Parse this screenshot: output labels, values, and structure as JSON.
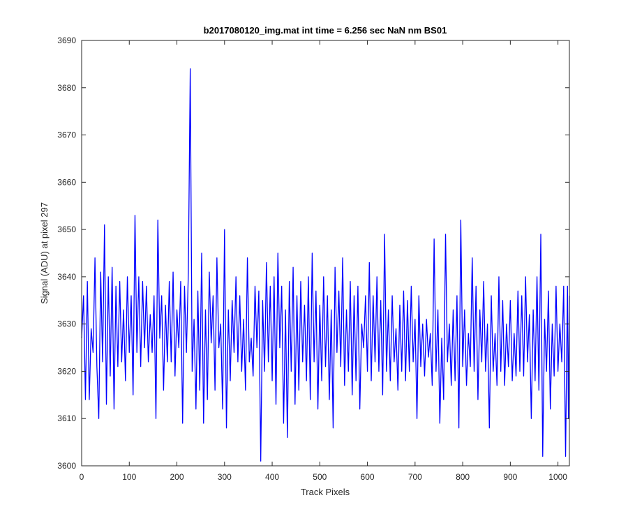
{
  "chart_data": {
    "type": "line",
    "title": "b2017080120_img.mat int time = 6.256 sec  NaN nm BS01",
    "xlabel": "Track Pixels",
    "ylabel": "Signal (ADU) at pixel 297",
    "xlim": [
      0,
      1024
    ],
    "ylim": [
      3600,
      3690
    ],
    "xticks": [
      0,
      100,
      200,
      300,
      400,
      500,
      600,
      700,
      800,
      900,
      1000
    ],
    "yticks": [
      3600,
      3610,
      3620,
      3630,
      3640,
      3650,
      3660,
      3670,
      3680,
      3690
    ],
    "grid": false,
    "line_color": "#0000ff",
    "series": [
      {
        "points": [
          [
            0,
            3627
          ],
          [
            4,
            3636
          ],
          [
            8,
            3614
          ],
          [
            12,
            3639
          ],
          [
            16,
            3614
          ],
          [
            20,
            3629
          ],
          [
            24,
            3624
          ],
          [
            28,
            3644
          ],
          [
            32,
            3621
          ],
          [
            36,
            3610
          ],
          [
            40,
            3641
          ],
          [
            44,
            3622
          ],
          [
            48,
            3651
          ],
          [
            52,
            3613
          ],
          [
            56,
            3640
          ],
          [
            60,
            3619
          ],
          [
            64,
            3642
          ],
          [
            68,
            3612
          ],
          [
            72,
            3638
          ],
          [
            76,
            3621
          ],
          [
            80,
            3639
          ],
          [
            84,
            3622
          ],
          [
            88,
            3633
          ],
          [
            92,
            3618
          ],
          [
            96,
            3640
          ],
          [
            100,
            3624
          ],
          [
            104,
            3636
          ],
          [
            108,
            3615
          ],
          [
            112,
            3653
          ],
          [
            116,
            3624
          ],
          [
            120,
            3640
          ],
          [
            124,
            3621
          ],
          [
            128,
            3639
          ],
          [
            132,
            3625
          ],
          [
            136,
            3638
          ],
          [
            140,
            3622
          ],
          [
            144,
            3632
          ],
          [
            148,
            3624
          ],
          [
            152,
            3636
          ],
          [
            156,
            3610
          ],
          [
            160,
            3652
          ],
          [
            164,
            3627
          ],
          [
            168,
            3636
          ],
          [
            172,
            3616
          ],
          [
            176,
            3634
          ],
          [
            180,
            3622
          ],
          [
            184,
            3639
          ],
          [
            188,
            3622
          ],
          [
            192,
            3641
          ],
          [
            196,
            3619
          ],
          [
            200,
            3633
          ],
          [
            204,
            3625
          ],
          [
            208,
            3639
          ],
          [
            212,
            3609
          ],
          [
            216,
            3638
          ],
          [
            220,
            3624
          ],
          [
            224,
            3641
          ],
          [
            228,
            3684
          ],
          [
            232,
            3620
          ],
          [
            236,
            3631
          ],
          [
            240,
            3612
          ],
          [
            244,
            3637
          ],
          [
            248,
            3616
          ],
          [
            252,
            3645
          ],
          [
            256,
            3609
          ],
          [
            260,
            3633
          ],
          [
            264,
            3614
          ],
          [
            268,
            3641
          ],
          [
            272,
            3626
          ],
          [
            276,
            3636
          ],
          [
            280,
            3616
          ],
          [
            284,
            3644
          ],
          [
            288,
            3625
          ],
          [
            292,
            3630
          ],
          [
            296,
            3612
          ],
          [
            300,
            3650
          ],
          [
            304,
            3608
          ],
          [
            308,
            3633
          ],
          [
            312,
            3618
          ],
          [
            316,
            3635
          ],
          [
            320,
            3624
          ],
          [
            324,
            3640
          ],
          [
            328,
            3622
          ],
          [
            332,
            3636
          ],
          [
            336,
            3620
          ],
          [
            340,
            3631
          ],
          [
            344,
            3616
          ],
          [
            348,
            3644
          ],
          [
            352,
            3622
          ],
          [
            356,
            3627
          ],
          [
            360,
            3619
          ],
          [
            364,
            3638
          ],
          [
            368,
            3625
          ],
          [
            372,
            3637
          ],
          [
            376,
            3601
          ],
          [
            380,
            3635
          ],
          [
            384,
            3620
          ],
          [
            388,
            3643
          ],
          [
            392,
            3622
          ],
          [
            396,
            3638
          ],
          [
            400,
            3618
          ],
          [
            404,
            3640
          ],
          [
            408,
            3613
          ],
          [
            412,
            3645
          ],
          [
            416,
            3625
          ],
          [
            420,
            3638
          ],
          [
            424,
            3609
          ],
          [
            428,
            3633
          ],
          [
            432,
            3606
          ],
          [
            436,
            3639
          ],
          [
            440,
            3620
          ],
          [
            444,
            3642
          ],
          [
            448,
            3613
          ],
          [
            452,
            3636
          ],
          [
            456,
            3616
          ],
          [
            460,
            3639
          ],
          [
            464,
            3622
          ],
          [
            468,
            3634
          ],
          [
            472,
            3618
          ],
          [
            476,
            3640
          ],
          [
            480,
            3614
          ],
          [
            484,
            3645
          ],
          [
            488,
            3622
          ],
          [
            492,
            3637
          ],
          [
            496,
            3612
          ],
          [
            500,
            3634
          ],
          [
            504,
            3618
          ],
          [
            508,
            3640
          ],
          [
            512,
            3621
          ],
          [
            516,
            3636
          ],
          [
            520,
            3614
          ],
          [
            524,
            3633
          ],
          [
            528,
            3608
          ],
          [
            532,
            3642
          ],
          [
            536,
            3624
          ],
          [
            540,
            3637
          ],
          [
            544,
            3621
          ],
          [
            548,
            3644
          ],
          [
            552,
            3617
          ],
          [
            556,
            3633
          ],
          [
            560,
            3620
          ],
          [
            564,
            3639
          ],
          [
            568,
            3615
          ],
          [
            572,
            3636
          ],
          [
            576,
            3618
          ],
          [
            580,
            3638
          ],
          [
            584,
            3612
          ],
          [
            588,
            3630
          ],
          [
            592,
            3625
          ],
          [
            596,
            3636
          ],
          [
            600,
            3620
          ],
          [
            604,
            3643
          ],
          [
            608,
            3618
          ],
          [
            612,
            3636
          ],
          [
            616,
            3622
          ],
          [
            620,
            3640
          ],
          [
            624,
            3620
          ],
          [
            628,
            3635
          ],
          [
            632,
            3615
          ],
          [
            636,
            3649
          ],
          [
            640,
            3620
          ],
          [
            644,
            3633
          ],
          [
            648,
            3618
          ],
          [
            652,
            3636
          ],
          [
            656,
            3622
          ],
          [
            660,
            3629
          ],
          [
            664,
            3616
          ],
          [
            668,
            3634
          ],
          [
            672,
            3620
          ],
          [
            676,
            3637
          ],
          [
            680,
            3618
          ],
          [
            684,
            3635
          ],
          [
            688,
            3620
          ],
          [
            692,
            3638
          ],
          [
            696,
            3622
          ],
          [
            700,
            3631
          ],
          [
            704,
            3610
          ],
          [
            708,
            3636
          ],
          [
            712,
            3621
          ],
          [
            716,
            3630
          ],
          [
            720,
            3619
          ],
          [
            724,
            3631
          ],
          [
            728,
            3623
          ],
          [
            732,
            3628
          ],
          [
            736,
            3617
          ],
          [
            740,
            3648
          ],
          [
            744,
            3620
          ],
          [
            748,
            3633
          ],
          [
            752,
            3609
          ],
          [
            756,
            3627
          ],
          [
            760,
            3614
          ],
          [
            764,
            3649
          ],
          [
            768,
            3622
          ],
          [
            772,
            3630
          ],
          [
            776,
            3617
          ],
          [
            780,
            3633
          ],
          [
            784,
            3618
          ],
          [
            788,
            3636
          ],
          [
            792,
            3608
          ],
          [
            796,
            3652
          ],
          [
            800,
            3621
          ],
          [
            804,
            3633
          ],
          [
            808,
            3617
          ],
          [
            812,
            3628
          ],
          [
            816,
            3621
          ],
          [
            820,
            3644
          ],
          [
            824,
            3620
          ],
          [
            828,
            3638
          ],
          [
            832,
            3614
          ],
          [
            836,
            3633
          ],
          [
            840,
            3622
          ],
          [
            844,
            3639
          ],
          [
            848,
            3620
          ],
          [
            852,
            3630
          ],
          [
            856,
            3608
          ],
          [
            860,
            3636
          ],
          [
            864,
            3620
          ],
          [
            868,
            3628
          ],
          [
            872,
            3617
          ],
          [
            876,
            3640
          ],
          [
            880,
            3620
          ],
          [
            884,
            3635
          ],
          [
            888,
            3617
          ],
          [
            892,
            3630
          ],
          [
            896,
            3621
          ],
          [
            900,
            3635
          ],
          [
            904,
            3618
          ],
          [
            908,
            3628
          ],
          [
            912,
            3619
          ],
          [
            916,
            3637
          ],
          [
            920,
            3620
          ],
          [
            924,
            3636
          ],
          [
            928,
            3619
          ],
          [
            932,
            3640
          ],
          [
            936,
            3622
          ],
          [
            940,
            3632
          ],
          [
            944,
            3610
          ],
          [
            948,
            3633
          ],
          [
            952,
            3618
          ],
          [
            956,
            3640
          ],
          [
            960,
            3616
          ],
          [
            964,
            3649
          ],
          [
            968,
            3602
          ],
          [
            972,
            3631
          ],
          [
            976,
            3620
          ],
          [
            980,
            3637
          ],
          [
            984,
            3612
          ],
          [
            988,
            3630
          ],
          [
            992,
            3619
          ],
          [
            996,
            3638
          ],
          [
            1000,
            3620
          ],
          [
            1004,
            3630
          ],
          [
            1008,
            3622
          ],
          [
            1012,
            3638
          ],
          [
            1016,
            3602
          ],
          [
            1020,
            3638
          ],
          [
            1022,
            3610
          ],
          [
            1024,
            3636
          ]
        ]
      }
    ]
  }
}
